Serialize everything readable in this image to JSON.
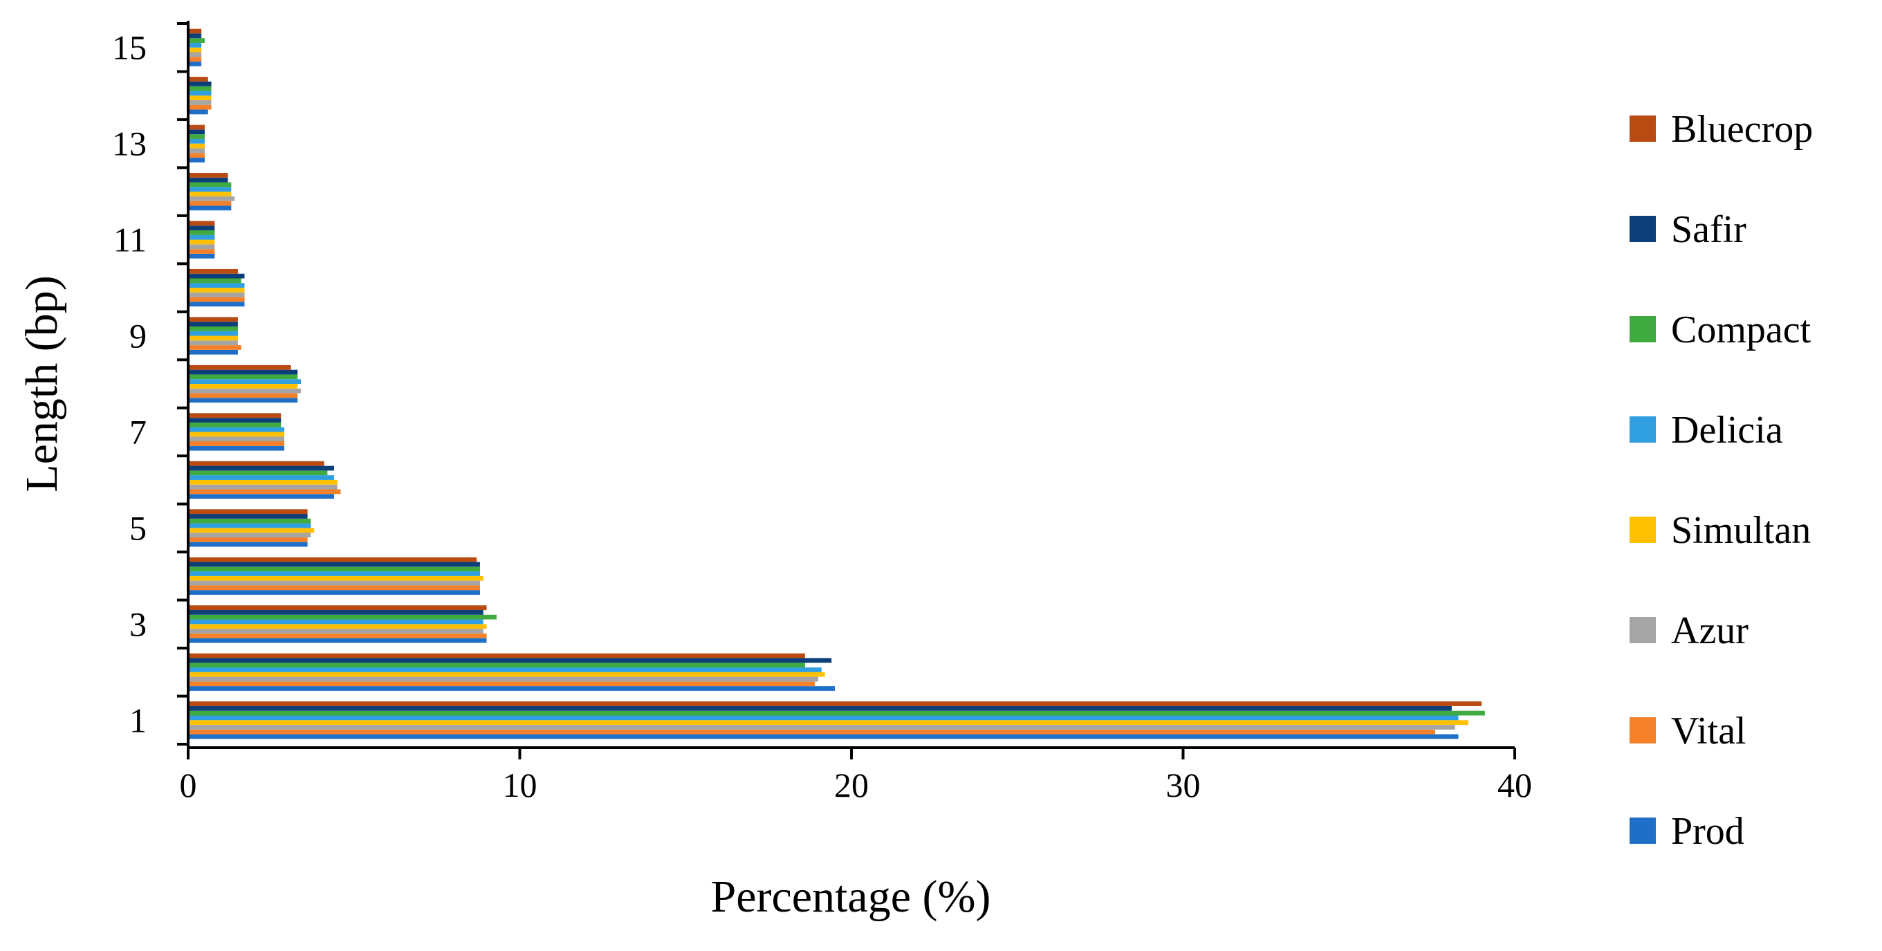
{
  "chart_data": {
    "type": "bar",
    "orientation": "horizontal",
    "title": "",
    "xlabel": "Percentage (%)",
    "ylabel": "Length (bp)",
    "xlim": [
      0,
      40
    ],
    "x_ticks": [
      "0",
      "10",
      "20",
      "30",
      "40"
    ],
    "categories": [
      "1",
      "2",
      "3",
      "4",
      "5",
      "6",
      "7",
      "8",
      "9",
      "10",
      "11",
      "12",
      "13",
      "14",
      "15"
    ],
    "category_tick_labels": [
      "1",
      "3",
      "5",
      "7",
      "9",
      "11",
      "13",
      "15"
    ],
    "grid": false,
    "legend_position": "right",
    "series": [
      {
        "name": "Prod",
        "color": "#1f6fc9",
        "values": [
          38.3,
          19.5,
          9.0,
          8.8,
          3.6,
          4.4,
          2.9,
          3.3,
          1.5,
          1.7,
          0.8,
          1.3,
          0.5,
          0.6,
          0.4
        ]
      },
      {
        "name": "Vital",
        "color": "#f5822a",
        "values": [
          37.6,
          18.9,
          9.0,
          8.8,
          3.6,
          4.6,
          2.9,
          3.3,
          1.6,
          1.7,
          0.8,
          1.3,
          0.5,
          0.7,
          0.4
        ]
      },
      {
        "name": "Azur",
        "color": "#a5a5a5",
        "values": [
          38.2,
          19.0,
          8.9,
          8.8,
          3.7,
          4.5,
          2.9,
          3.4,
          1.5,
          1.7,
          0.8,
          1.4,
          0.5,
          0.7,
          0.4
        ]
      },
      {
        "name": "Simultan",
        "color": "#ffc000",
        "values": [
          38.6,
          19.2,
          9.0,
          8.9,
          3.8,
          4.5,
          2.9,
          3.3,
          1.5,
          1.7,
          0.8,
          1.3,
          0.5,
          0.7,
          0.4
        ]
      },
      {
        "name": "Delicia",
        "color": "#2f9fe0",
        "values": [
          38.3,
          19.1,
          8.9,
          8.8,
          3.7,
          4.4,
          2.9,
          3.4,
          1.5,
          1.7,
          0.8,
          1.3,
          0.5,
          0.7,
          0.4
        ]
      },
      {
        "name": "Compact",
        "color": "#3faa3f",
        "values": [
          39.1,
          18.6,
          9.3,
          8.8,
          3.7,
          4.2,
          2.8,
          3.3,
          1.5,
          1.6,
          0.8,
          1.3,
          0.5,
          0.7,
          0.5
        ]
      },
      {
        "name": "Safir",
        "color": "#0c3f7a",
        "values": [
          38.1,
          19.4,
          8.9,
          8.8,
          3.6,
          4.4,
          2.8,
          3.3,
          1.5,
          1.7,
          0.8,
          1.2,
          0.5,
          0.7,
          0.4
        ]
      },
      {
        "name": "Bluecrop",
        "color": "#b84a12",
        "values": [
          39.0,
          18.6,
          9.0,
          8.7,
          3.6,
          4.1,
          2.8,
          3.1,
          1.5,
          1.5,
          0.8,
          1.2,
          0.5,
          0.6,
          0.4
        ]
      }
    ]
  }
}
